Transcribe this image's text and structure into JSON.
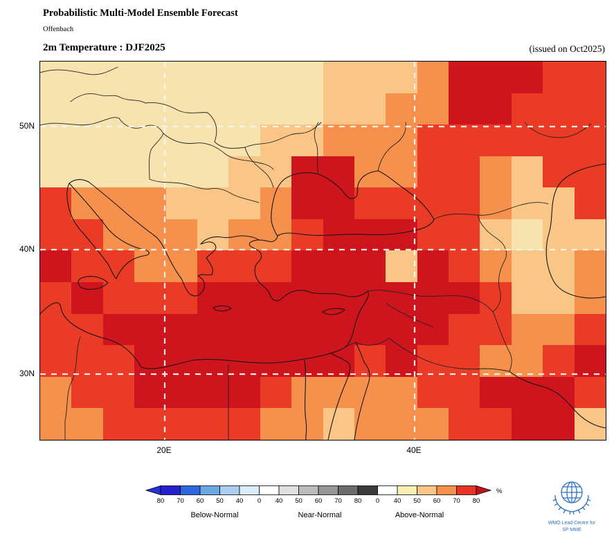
{
  "header": {
    "title": "Probabilistic Multi-Model Ensemble Forecast",
    "location": "Offenbach",
    "product_title": "2m Temperature : DJF2025",
    "issued_note": "(issued on Oct2025)"
  },
  "axes": {
    "lat": [
      "50N",
      "40N",
      "30N"
    ],
    "lon": [
      "20E",
      "40E"
    ]
  },
  "colorbar": {
    "unit": "%",
    "ticks": [
      "80",
      "70",
      "60",
      "50",
      "40",
      "0",
      "40",
      "50",
      "60",
      "70",
      "80",
      "0",
      "40",
      "50",
      "60",
      "70",
      "80"
    ],
    "segment_colors": [
      "#2420CE",
      "#2E66E0",
      "#6AA8E6",
      "#AACDF0",
      "#DCECF8",
      "#FFFFFF",
      "#E0E0E0",
      "#BCBCBC",
      "#969696",
      "#6C6C6C",
      "#3A3A3A",
      "#FFFFFF",
      "#F8EFB4",
      "#FAC687",
      "#F5914C",
      "#E73425"
    ],
    "arrow_left_color": "#2430D6",
    "arrow_right_color": "#BE131A",
    "category_labels": [
      "Below-Normal",
      "Near-Normal",
      "Above-Normal"
    ]
  },
  "logo": {
    "line1": "WMO Lead Centre for",
    "line2": "SP MME"
  },
  "chart_data": {
    "type": "heatmap",
    "title": "2m Temperature : DJF2025",
    "subtitle": "Probabilistic Multi-Model Ensemble Forecast, Offenbach, issued on Oct2025",
    "lon_range": [
      10,
      55.3
    ],
    "lat_range": [
      24.7,
      55.3
    ],
    "cell_size_deg": 2.5,
    "x_ticks": [
      "20E",
      "40E"
    ],
    "y_ticks": [
      "50N",
      "40N",
      "30N"
    ],
    "rows_order": "rows north to south (55.3N to 24.7N), columns west to east (10E to 55.3E)",
    "legend": {
      "A": {
        "label": "Above-Normal 40-50%",
        "color": "#F7E3AE"
      },
      "B": {
        "label": "Above-Normal 50-60%",
        "color": "#FAC687"
      },
      "C": {
        "label": "Above-Normal 60-70%",
        "color": "#F5914C"
      },
      "D": {
        "label": "Above-Normal 70-80%",
        "color": "#E93B26"
      },
      "E": {
        "label": "Above-Normal >80%",
        "color": "#CE141D"
      }
    },
    "rows": [
      "AAAAAAAAABBBCEEEDD",
      "AAAAAAAAABBCCEEDDD",
      "AAAAAAABBCCCDDDDDD",
      "AAAAAABBEECCDDCBDD",
      "DCCCBBBCEEDDDDCBBD",
      "DDCCCBCCDEEEDDBABB",
      "EDDCCDDDEEEBEDCBBC",
      "DEDDDEEEEEEEEEDBBC",
      "DDEEEEEEEEEEEDDCCD",
      "DDDEEEEEEEDEDDCCDE",
      "CDDEEEEDCCCCDDEEED",
      "CCDDDDDCCBCCCDDEEB"
    ]
  }
}
